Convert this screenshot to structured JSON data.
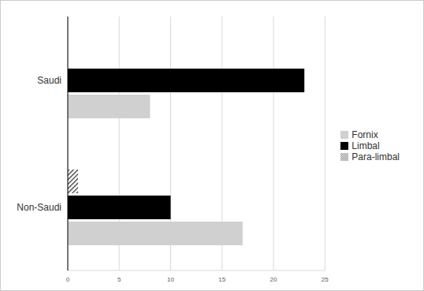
{
  "chart_data": {
    "type": "bar",
    "orientation": "horizontal",
    "categories": [
      "Saudi",
      "Non-Saudi"
    ],
    "series": [
      {
        "name": "Para-limbal",
        "color": "#333333",
        "values": [
          0,
          1
        ]
      },
      {
        "name": "Limbal",
        "color": "#000000",
        "values": [
          23,
          10
        ]
      },
      {
        "name": "Fornix",
        "color": "#d0d0d0",
        "values": [
          8,
          17
        ]
      }
    ],
    "xlim": [
      0,
      25
    ],
    "xticks": [
      0,
      5,
      10,
      15,
      20,
      25
    ],
    "grid": true,
    "legend": "right"
  }
}
